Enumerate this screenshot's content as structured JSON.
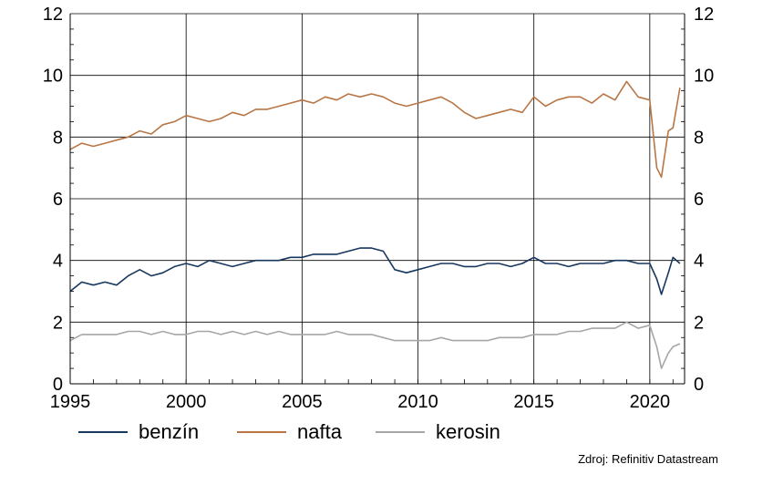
{
  "chart_data": {
    "type": "line",
    "title": "",
    "xlabel": "",
    "ylabel": "",
    "xlim": [
      1995,
      2021.5
    ],
    "ylim": [
      0,
      12
    ],
    "x_ticks": [
      "1995",
      "2000",
      "2005",
      "2010",
      "2015",
      "2020"
    ],
    "y_ticks": [
      "0",
      "2",
      "4",
      "6",
      "8",
      "10",
      "12"
    ],
    "grid": true,
    "legend_position": "bottom",
    "series": [
      {
        "name": "benzín",
        "color": "#17375e",
        "x": [
          1995.0,
          1995.5,
          1996.0,
          1996.5,
          1997.0,
          1997.5,
          1998.0,
          1998.5,
          1999.0,
          1999.5,
          2000.0,
          2000.5,
          2001.0,
          2001.5,
          2002.0,
          2002.5,
          2003.0,
          2003.5,
          2004.0,
          2004.5,
          2005.0,
          2005.5,
          2006.0,
          2006.5,
          2007.0,
          2007.5,
          2008.0,
          2008.5,
          2009.0,
          2009.5,
          2010.0,
          2010.5,
          2011.0,
          2011.5,
          2012.0,
          2012.5,
          2013.0,
          2013.5,
          2014.0,
          2014.5,
          2015.0,
          2015.5,
          2016.0,
          2016.5,
          2017.0,
          2017.5,
          2018.0,
          2018.5,
          2019.0,
          2019.5,
          2020.0,
          2020.3,
          2020.5,
          2020.8,
          2021.0,
          2021.3
        ],
        "values": [
          3.0,
          3.3,
          3.2,
          3.3,
          3.2,
          3.5,
          3.7,
          3.5,
          3.6,
          3.8,
          3.9,
          3.8,
          4.0,
          3.9,
          3.8,
          3.9,
          4.0,
          4.0,
          4.0,
          4.1,
          4.1,
          4.2,
          4.2,
          4.2,
          4.3,
          4.4,
          4.4,
          4.3,
          3.7,
          3.6,
          3.7,
          3.8,
          3.9,
          3.9,
          3.8,
          3.8,
          3.9,
          3.9,
          3.8,
          3.9,
          4.1,
          3.9,
          3.9,
          3.8,
          3.9,
          3.9,
          3.9,
          4.0,
          4.0,
          3.9,
          3.9,
          3.4,
          2.9,
          3.6,
          4.1,
          3.9
        ]
      },
      {
        "name": "nafta",
        "color": "#b87646",
        "x": [
          1995.0,
          1995.5,
          1996.0,
          1996.5,
          1997.0,
          1997.5,
          1998.0,
          1998.5,
          1999.0,
          1999.5,
          2000.0,
          2000.5,
          2001.0,
          2001.5,
          2002.0,
          2002.5,
          2003.0,
          2003.5,
          2004.0,
          2004.5,
          2005.0,
          2005.5,
          2006.0,
          2006.5,
          2007.0,
          2007.5,
          2008.0,
          2008.5,
          2009.0,
          2009.5,
          2010.0,
          2010.5,
          2011.0,
          2011.5,
          2012.0,
          2012.5,
          2013.0,
          2013.5,
          2014.0,
          2014.5,
          2015.0,
          2015.5,
          2016.0,
          2016.5,
          2017.0,
          2017.5,
          2018.0,
          2018.5,
          2019.0,
          2019.5,
          2020.0,
          2020.3,
          2020.5,
          2020.8,
          2021.0,
          2021.3
        ],
        "values": [
          7.6,
          7.8,
          7.7,
          7.8,
          7.9,
          8.0,
          8.2,
          8.1,
          8.4,
          8.5,
          8.7,
          8.6,
          8.5,
          8.6,
          8.8,
          8.7,
          8.9,
          8.9,
          9.0,
          9.1,
          9.2,
          9.1,
          9.3,
          9.2,
          9.4,
          9.3,
          9.4,
          9.3,
          9.1,
          9.0,
          9.1,
          9.2,
          9.3,
          9.1,
          8.8,
          8.6,
          8.7,
          8.8,
          8.9,
          8.8,
          9.3,
          9.0,
          9.2,
          9.3,
          9.3,
          9.1,
          9.4,
          9.2,
          9.8,
          9.3,
          9.2,
          7.0,
          6.7,
          8.2,
          8.3,
          9.6
        ]
      },
      {
        "name": "kerosin",
        "color": "#a6a6a6",
        "x": [
          1995.0,
          1995.5,
          1996.0,
          1996.5,
          1997.0,
          1997.5,
          1998.0,
          1998.5,
          1999.0,
          1999.5,
          2000.0,
          2000.5,
          2001.0,
          2001.5,
          2002.0,
          2002.5,
          2003.0,
          2003.5,
          2004.0,
          2004.5,
          2005.0,
          2005.5,
          2006.0,
          2006.5,
          2007.0,
          2007.5,
          2008.0,
          2008.5,
          2009.0,
          2009.5,
          2010.0,
          2010.5,
          2011.0,
          2011.5,
          2012.0,
          2012.5,
          2013.0,
          2013.5,
          2014.0,
          2014.5,
          2015.0,
          2015.5,
          2016.0,
          2016.5,
          2017.0,
          2017.5,
          2018.0,
          2018.5,
          2019.0,
          2019.5,
          2020.0,
          2020.3,
          2020.5,
          2020.8,
          2021.0,
          2021.3
        ],
        "values": [
          1.4,
          1.6,
          1.6,
          1.6,
          1.6,
          1.7,
          1.7,
          1.6,
          1.7,
          1.6,
          1.6,
          1.7,
          1.7,
          1.6,
          1.7,
          1.6,
          1.7,
          1.6,
          1.7,
          1.6,
          1.6,
          1.6,
          1.6,
          1.7,
          1.6,
          1.6,
          1.6,
          1.5,
          1.4,
          1.4,
          1.4,
          1.4,
          1.5,
          1.4,
          1.4,
          1.4,
          1.4,
          1.5,
          1.5,
          1.5,
          1.6,
          1.6,
          1.6,
          1.7,
          1.7,
          1.8,
          1.8,
          1.8,
          2.0,
          1.8,
          1.9,
          1.2,
          0.5,
          1.0,
          1.2,
          1.3
        ]
      }
    ]
  },
  "legend": {
    "items": [
      {
        "label": "benzín",
        "color": "#17375e"
      },
      {
        "label": "nafta",
        "color": "#b87646"
      },
      {
        "label": "kerosin",
        "color": "#a6a6a6"
      }
    ]
  },
  "source": "Zdroj: Refinitiv Datastream"
}
